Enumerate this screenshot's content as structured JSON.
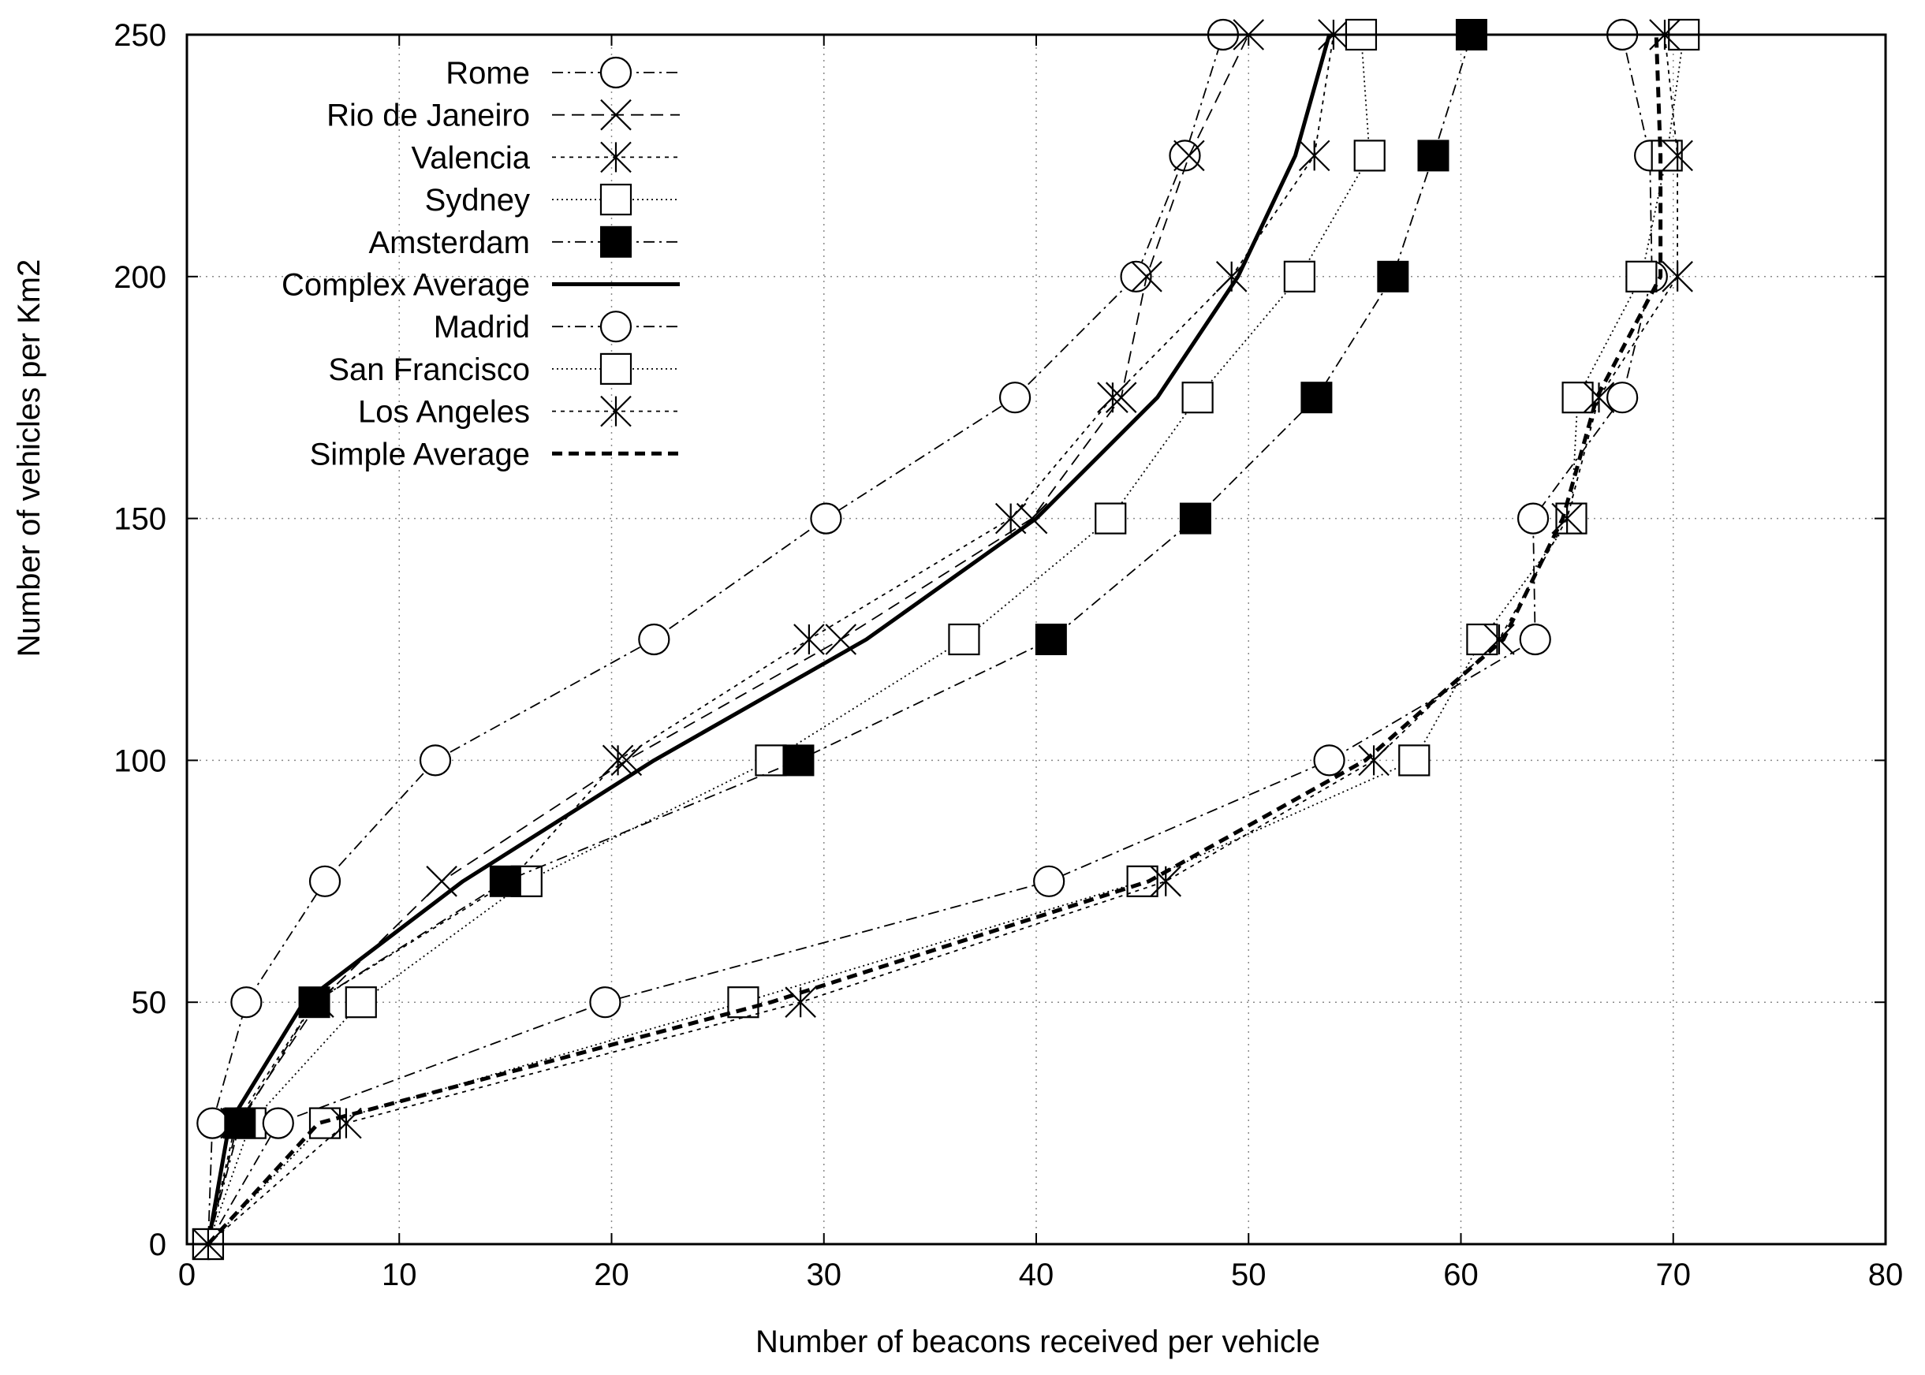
{
  "chart_data": {
    "type": "line",
    "title": "",
    "xlabel": "Number of beacons received per vehicle",
    "ylabel": "Number of vehicles per Km2",
    "xlim": [
      0,
      80
    ],
    "ylim": [
      0,
      250
    ],
    "xticks": [
      0,
      10,
      20,
      30,
      40,
      50,
      60,
      70,
      80
    ],
    "yticks": [
      0,
      50,
      100,
      150,
      200,
      250
    ],
    "grid": true,
    "legend_position": "top-left",
    "y": [
      0,
      25,
      50,
      75,
      100,
      125,
      150,
      175,
      200,
      225,
      250
    ],
    "series": [
      {
        "name": "Rome",
        "marker": "circle",
        "dash": "dashdot",
        "width": "thin",
        "x": [
          1,
          1.2,
          2.8,
          6.5,
          11.7,
          22,
          30.1,
          39,
          44.7,
          47,
          48.8
        ]
      },
      {
        "name": "Rio de Janeiro",
        "marker": "x",
        "dash": "dashed",
        "width": "thin",
        "x": [
          1,
          2.4,
          6.2,
          12,
          20.7,
          30.8,
          39.8,
          44,
          45.2,
          47.2,
          50
        ]
      },
      {
        "name": "Valencia",
        "marker": "asterisk",
        "dash": "dotted",
        "width": "thin",
        "x": [
          1,
          2.3,
          6,
          15.2,
          20.3,
          29.3,
          38.8,
          43.6,
          49.2,
          53.1,
          54
        ]
      },
      {
        "name": "Sydney",
        "marker": "square",
        "dash": "dotted-fine",
        "width": "thin",
        "x": [
          1,
          3,
          8.2,
          16,
          27.5,
          36.6,
          43.5,
          47.6,
          52.4,
          55.7,
          55.3
        ]
      },
      {
        "name": "Amsterdam",
        "marker": "filled-square",
        "dash": "dashdot",
        "width": "thin",
        "x": [
          1,
          2.5,
          6,
          15,
          28.8,
          40.7,
          47.5,
          53.2,
          56.8,
          58.7,
          60.5
        ]
      },
      {
        "name": "Complex Average",
        "marker": "none",
        "dash": "solid",
        "width": "thick",
        "x": [
          1,
          2,
          5.5,
          13,
          22,
          32,
          40,
          45.7,
          49.5,
          52.2,
          53.8
        ]
      },
      {
        "name": "Madrid",
        "marker": "circle",
        "dash": "dashdot",
        "width": "thin",
        "x": [
          1,
          4.3,
          19.7,
          40.6,
          53.8,
          63.5,
          63.4,
          67.6,
          69,
          68.9,
          67.6
        ]
      },
      {
        "name": "San Francisco",
        "marker": "square",
        "dash": "dotted-fine",
        "width": "thin",
        "x": [
          1,
          6.5,
          26.2,
          45,
          57.8,
          61,
          65.2,
          65.5,
          68.5,
          69.7,
          70.5
        ]
      },
      {
        "name": "Los Angeles",
        "marker": "asterisk",
        "dash": "dotted",
        "width": "thin",
        "x": [
          1,
          7.5,
          28.9,
          46.1,
          55.9,
          61.8,
          65,
          66.5,
          70.2,
          70.2,
          69.6
        ]
      },
      {
        "name": "Simple Average",
        "marker": "none",
        "dash": "bold-dashed",
        "width": "thick",
        "x": [
          1,
          6.2,
          27.5,
          45.3,
          55.5,
          62,
          64.8,
          66.4,
          69.4,
          69.4,
          69.2
        ]
      }
    ]
  }
}
